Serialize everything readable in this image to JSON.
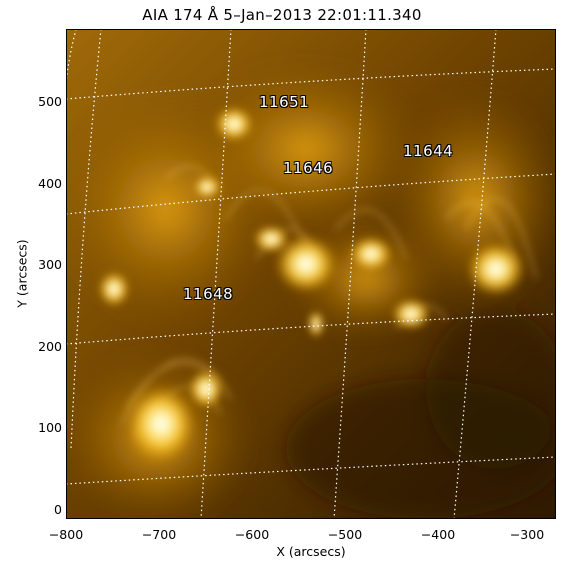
{
  "title": "AIA 174 Å  5–Jan–2013 22:01:11.340",
  "xlabel": "X (arcsecs)",
  "ylabel": "Y (arcsecs)",
  "xticks": [
    "−800",
    "−700",
    "−600",
    "−500",
    "−400",
    "−300"
  ],
  "yticks": [
    "0",
    "100",
    "200",
    "300",
    "400",
    "500"
  ],
  "regions": [
    {
      "label": "11651"
    },
    {
      "label": "11646"
    },
    {
      "label": "11644"
    },
    {
      "label": "11648"
    }
  ],
  "colors": {
    "sun_dark": "#2a1500",
    "sun_mid": "#8a5600",
    "sun_bright": "#ffcf3a",
    "grid": "#ffffff"
  }
}
